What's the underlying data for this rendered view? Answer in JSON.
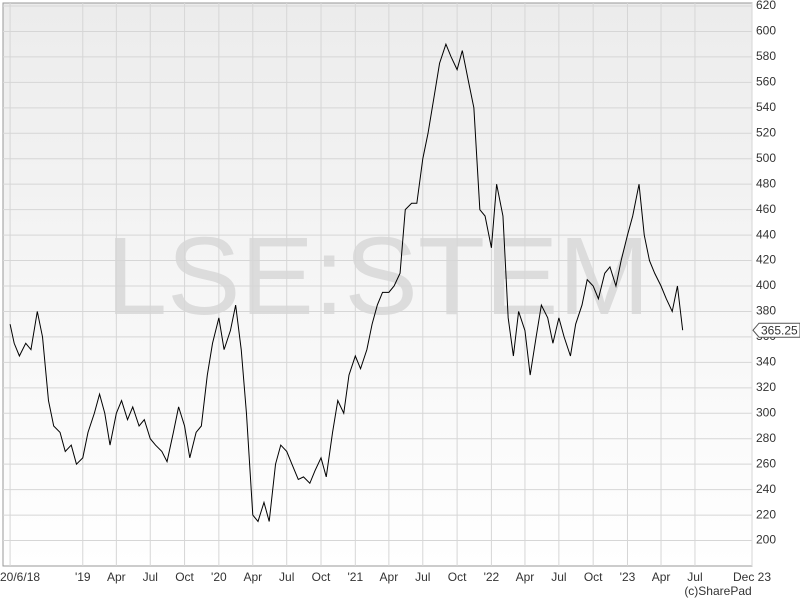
{
  "chart_data": {
    "type": "line",
    "watermark": "LSE:STEM",
    "credit": "(c)SharePad",
    "color": "#000000",
    "grid": true,
    "x": [
      "2018-06-20",
      "2018-07-01",
      "2018-07-15",
      "2018-08-01",
      "2018-08-15",
      "2018-09-01",
      "2018-09-15",
      "2018-10-01",
      "2018-10-15",
      "2018-11-01",
      "2018-11-15",
      "2018-12-01",
      "2018-12-15",
      "2019-01-01",
      "2019-01-15",
      "2019-02-01",
      "2019-02-15",
      "2019-03-01",
      "2019-03-15",
      "2019-04-01",
      "2019-04-15",
      "2019-05-01",
      "2019-05-15",
      "2019-06-01",
      "2019-06-15",
      "2019-07-01",
      "2019-07-15",
      "2019-08-01",
      "2019-08-15",
      "2019-09-01",
      "2019-09-15",
      "2019-10-01",
      "2019-10-15",
      "2019-11-01",
      "2019-11-15",
      "2019-12-01",
      "2019-12-15",
      "2020-01-01",
      "2020-01-15",
      "2020-02-01",
      "2020-02-15",
      "2020-03-01",
      "2020-03-15",
      "2020-04-01",
      "2020-04-15",
      "2020-05-01",
      "2020-05-15",
      "2020-06-01",
      "2020-06-15",
      "2020-07-01",
      "2020-07-15",
      "2020-08-01",
      "2020-08-15",
      "2020-09-01",
      "2020-09-15",
      "2020-10-01",
      "2020-10-15",
      "2020-11-01",
      "2020-11-15",
      "2020-12-01",
      "2020-12-15",
      "2021-01-01",
      "2021-01-15",
      "2021-02-01",
      "2021-02-15",
      "2021-03-01",
      "2021-03-15",
      "2021-04-01",
      "2021-04-15",
      "2021-05-01",
      "2021-05-15",
      "2021-06-01",
      "2021-06-15",
      "2021-07-01",
      "2021-07-15",
      "2021-08-01",
      "2021-08-15",
      "2021-09-01",
      "2021-09-15",
      "2021-10-01",
      "2021-10-15",
      "2021-11-01",
      "2021-11-15",
      "2021-12-01",
      "2021-12-15",
      "2022-01-01",
      "2022-01-15",
      "2022-02-01",
      "2022-02-15",
      "2022-03-01",
      "2022-03-15",
      "2022-04-01",
      "2022-04-15",
      "2022-05-01",
      "2022-05-15",
      "2022-06-01",
      "2022-06-15",
      "2022-07-01",
      "2022-07-15",
      "2022-08-01",
      "2022-08-15",
      "2022-09-01",
      "2022-09-15",
      "2022-10-01",
      "2022-10-15",
      "2022-11-01",
      "2022-11-15",
      "2022-12-01",
      "2022-12-15",
      "2023-01-01",
      "2023-01-15",
      "2023-02-01",
      "2023-02-15",
      "2023-03-01",
      "2023-03-15",
      "2023-04-01",
      "2023-04-15",
      "2023-05-01",
      "2023-05-15",
      "2023-05-29"
    ],
    "values": [
      370,
      355,
      345,
      355,
      350,
      380,
      360,
      310,
      290,
      285,
      270,
      275,
      260,
      265,
      285,
      300,
      315,
      300,
      275,
      300,
      310,
      295,
      305,
      290,
      295,
      280,
      275,
      270,
      262,
      285,
      305,
      290,
      265,
      285,
      290,
      330,
      355,
      375,
      350,
      365,
      385,
      350,
      300,
      220,
      215,
      230,
      215,
      260,
      275,
      270,
      260,
      248,
      250,
      245,
      255,
      265,
      250,
      285,
      310,
      300,
      330,
      345,
      335,
      350,
      370,
      385,
      395,
      395,
      400,
      410,
      460,
      465,
      465,
      500,
      520,
      550,
      575,
      590,
      580,
      570,
      585,
      560,
      540,
      460,
      455,
      430,
      480,
      455,
      375,
      345,
      380,
      365,
      330,
      360,
      385,
      375,
      355,
      375,
      360,
      345,
      370,
      385,
      405,
      400,
      390,
      410,
      415,
      400,
      420,
      440,
      455,
      480,
      440,
      420,
      410,
      400,
      390,
      380,
      400,
      365.25
    ],
    "xlim": [
      "2018-06-01",
      "2023-12-01"
    ],
    "xticks": [
      {
        "value": "2018-06-20",
        "label": "20/6/18"
      },
      {
        "value": "2019-01-01",
        "label": "'19"
      },
      {
        "value": "2019-04-01",
        "label": "Apr"
      },
      {
        "value": "2019-07-01",
        "label": "Jul"
      },
      {
        "value": "2019-10-01",
        "label": "Oct"
      },
      {
        "value": "2020-01-01",
        "label": "'20"
      },
      {
        "value": "2020-04-01",
        "label": "Apr"
      },
      {
        "value": "2020-07-01",
        "label": "Jul"
      },
      {
        "value": "2020-10-01",
        "label": "Oct"
      },
      {
        "value": "2021-01-01",
        "label": "'21"
      },
      {
        "value": "2021-04-01",
        "label": "Apr"
      },
      {
        "value": "2021-07-01",
        "label": "Jul"
      },
      {
        "value": "2021-10-01",
        "label": "Oct"
      },
      {
        "value": "2022-01-01",
        "label": "'22"
      },
      {
        "value": "2022-04-01",
        "label": "Apr"
      },
      {
        "value": "2022-07-01",
        "label": "Jul"
      },
      {
        "value": "2022-10-01",
        "label": "Oct"
      },
      {
        "value": "2023-01-01",
        "label": "'23"
      },
      {
        "value": "2023-04-01",
        "label": "Apr"
      },
      {
        "value": "2023-07-01",
        "label": "Jul"
      },
      {
        "value": "2023-12-01",
        "label": "Dec 23"
      }
    ],
    "ylim": [
      180,
      620
    ],
    "yticks": [
      200,
      220,
      240,
      260,
      280,
      300,
      320,
      340,
      360,
      380,
      400,
      420,
      440,
      460,
      480,
      500,
      520,
      540,
      560,
      580,
      600,
      620
    ]
  }
}
